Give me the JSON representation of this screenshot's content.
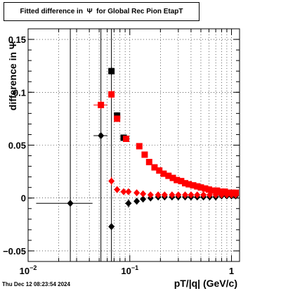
{
  "chart_data": {
    "type": "scatter",
    "title": "Fitted difference in  Ψ  for Global Rec Pion EtapT",
    "xlabel": "pT/|q| (GeV/c)",
    "ylabel": "difference in  Ψ",
    "x_scale": "log",
    "xlim": [
      0.01,
      1.2
    ],
    "ylim": [
      -0.06,
      0.16
    ],
    "y_ticks": [
      "−0.05",
      "0",
      "0.05",
      "0.1",
      "0.15"
    ],
    "y_tick_values": [
      -0.05,
      0,
      0.05,
      0.1,
      0.15
    ],
    "x_tick_labels": [
      {
        "value": 0.01,
        "base": "10",
        "exp": "−2"
      },
      {
        "value": 0.1,
        "base": "10",
        "exp": "−1"
      },
      {
        "value": 1,
        "base": "1",
        "exp": ""
      }
    ],
    "grid": true,
    "series": [
      {
        "color": "#000000",
        "marker": "diamond",
        "points": [
          {
            "x": 0.026,
            "y": -0.005,
            "xerr": [
              0.014,
              0.017
            ],
            "yerr": 0.2
          },
          {
            "x": 0.052,
            "y": 0.059,
            "xerr": [
              0.008,
              0.008
            ],
            "yerr": 0.2
          },
          {
            "x": 0.066,
            "y": -0.027,
            "xerr": [
              0.003,
              0.003
            ],
            "yerr": 0.2
          },
          {
            "x": 0.097,
            "y": -0.005,
            "xerr": [
              0.007,
              0.007
            ],
            "yerr": 0.004
          },
          {
            "x": 0.117,
            "y": -0.003,
            "xerr": [
              0.007,
              0.007
            ],
            "yerr": 0.003
          },
          {
            "x": 0.135,
            "y": -0.001,
            "xerr": [
              0.007,
              0.007
            ],
            "yerr": 0.002
          },
          {
            "x": 0.16,
            "y": 0.0,
            "xerr": [
              0.01,
              0.01
            ],
            "yerr": 0.001
          },
          {
            "x": 0.19,
            "y": 0.001,
            "xerr": [
              0.01,
              0.01
            ],
            "yerr": 0.001
          },
          {
            "x": 0.22,
            "y": 0.001,
            "xerr": [
              0.01,
              0.01
            ],
            "yerr": 0.001
          },
          {
            "x": 0.26,
            "y": 0.001
          },
          {
            "x": 0.3,
            "y": 0.001
          },
          {
            "x": 0.35,
            "y": 0.001
          },
          {
            "x": 0.4,
            "y": 0.001
          },
          {
            "x": 0.46,
            "y": 0.001
          },
          {
            "x": 0.53,
            "y": 0.001
          },
          {
            "x": 0.61,
            "y": 0.001
          },
          {
            "x": 0.7,
            "y": 0.001
          },
          {
            "x": 0.8,
            "y": 0.002
          },
          {
            "x": 0.9,
            "y": 0.002
          },
          {
            "x": 1.0,
            "y": 0.002
          },
          {
            "x": 1.1,
            "y": 0.002
          }
        ]
      },
      {
        "color": "#000000",
        "marker": "square",
        "points": [
          {
            "x": 0.066,
            "y": 0.12,
            "xerr": [
              0.003,
              0.003
            ],
            "yerr": 0.004
          },
          {
            "x": 0.075,
            "y": 0.078,
            "xerr": [
              0.003,
              0.003
            ],
            "yerr": 0.003
          },
          {
            "x": 0.087,
            "y": 0.057,
            "xerr": [
              0.006,
              0.006
            ],
            "yerr": 0.002
          }
        ]
      },
      {
        "color": "#ff0000",
        "marker": "square",
        "points": [
          {
            "x": 0.052,
            "y": 0.088,
            "xerr": [
              0.008,
              0.008
            ],
            "yerr": 0.004
          },
          {
            "x": 0.066,
            "y": 0.098,
            "xerr": [
              0.003,
              0.003
            ],
            "yerr": 0.004
          },
          {
            "x": 0.075,
            "y": 0.075,
            "xerr": [
              0.003,
              0.003
            ],
            "yerr": 0.003
          },
          {
            "x": 0.092,
            "y": 0.056,
            "xerr": [
              0.006,
              0.006
            ],
            "yerr": 0.002
          },
          {
            "x": 0.124,
            "y": 0.049,
            "xerr": [
              0.007,
              0.007
            ],
            "yerr": 0.002
          },
          {
            "x": 0.14,
            "y": 0.041
          },
          {
            "x": 0.155,
            "y": 0.034
          },
          {
            "x": 0.175,
            "y": 0.029
          },
          {
            "x": 0.195,
            "y": 0.026
          },
          {
            "x": 0.215,
            "y": 0.023
          },
          {
            "x": 0.24,
            "y": 0.021
          },
          {
            "x": 0.265,
            "y": 0.019
          },
          {
            "x": 0.29,
            "y": 0.017
          },
          {
            "x": 0.32,
            "y": 0.016
          },
          {
            "x": 0.35,
            "y": 0.014
          },
          {
            "x": 0.38,
            "y": 0.013
          },
          {
            "x": 0.42,
            "y": 0.012
          },
          {
            "x": 0.46,
            "y": 0.011
          },
          {
            "x": 0.5,
            "y": 0.01
          },
          {
            "x": 0.55,
            "y": 0.009
          },
          {
            "x": 0.6,
            "y": 0.008
          },
          {
            "x": 0.66,
            "y": 0.007
          },
          {
            "x": 0.72,
            "y": 0.007
          },
          {
            "x": 0.79,
            "y": 0.006
          },
          {
            "x": 0.86,
            "y": 0.006
          },
          {
            "x": 0.94,
            "y": 0.005
          },
          {
            "x": 1.02,
            "y": 0.005
          },
          {
            "x": 1.1,
            "y": 0.005
          }
        ]
      },
      {
        "color": "#ff0000",
        "marker": "diamond",
        "points": [
          {
            "x": 0.066,
            "y": 0.016,
            "xerr": [
              0.003,
              0.003
            ],
            "yerr": 0.004
          },
          {
            "x": 0.075,
            "y": 0.008,
            "xerr": [
              0.003,
              0.003
            ],
            "yerr": 0.003
          },
          {
            "x": 0.087,
            "y": 0.006,
            "xerr": [
              0.006,
              0.006
            ],
            "yerr": 0.002
          },
          {
            "x": 0.097,
            "y": 0.006,
            "xerr": [
              0.006,
              0.006
            ],
            "yerr": 0.002
          },
          {
            "x": 0.117,
            "y": 0.005,
            "xerr": [
              0.007,
              0.007
            ],
            "yerr": 0.002
          },
          {
            "x": 0.135,
            "y": 0.004,
            "xerr": [
              0.007,
              0.007
            ],
            "yerr": 0.002
          },
          {
            "x": 0.16,
            "y": 0.003
          },
          {
            "x": 0.19,
            "y": 0.003
          },
          {
            "x": 0.22,
            "y": 0.003
          },
          {
            "x": 0.26,
            "y": 0.003
          },
          {
            "x": 0.3,
            "y": 0.003
          },
          {
            "x": 0.35,
            "y": 0.003
          },
          {
            "x": 0.4,
            "y": 0.003
          },
          {
            "x": 0.46,
            "y": 0.003
          },
          {
            "x": 0.53,
            "y": 0.003
          },
          {
            "x": 0.61,
            "y": 0.003
          },
          {
            "x": 0.7,
            "y": 0.003
          },
          {
            "x": 0.8,
            "y": 0.003
          },
          {
            "x": 0.9,
            "y": 0.003
          },
          {
            "x": 1.0,
            "y": 0.003
          },
          {
            "x": 1.1,
            "y": 0.003
          }
        ]
      }
    ]
  },
  "footer": {
    "timestamp": "Thu Dec 12 08:23:54 2024"
  }
}
